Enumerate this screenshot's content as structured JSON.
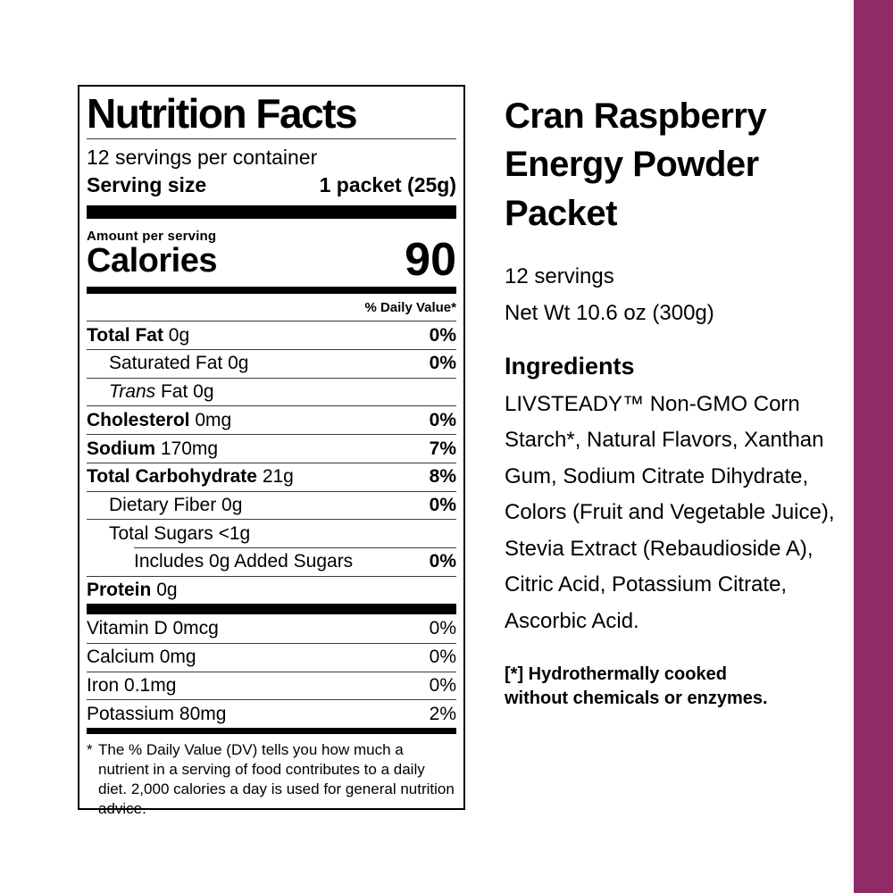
{
  "accent_color": "#912B65",
  "nutrition_label": {
    "title": "Nutrition Facts",
    "servings_per_container": "12 servings per container",
    "serving_size_label": "Serving size",
    "serving_size_value": "1 packet (25g)",
    "amount_per_serving_label": "Amount per serving",
    "calories_label": "Calories",
    "calories_value": "90",
    "daily_value_header": "% Daily Value*",
    "nutrient_rows": [
      {
        "name": "Total Fat",
        "amount": "0g",
        "dv": "0%"
      },
      {
        "name": "Saturated Fat",
        "amount": "0g",
        "dv": "0%"
      },
      {
        "name": "Trans",
        "amount": "Fat 0g",
        "dv": ""
      },
      {
        "name": "Cholesterol",
        "amount": "0mg",
        "dv": "0%"
      },
      {
        "name": "Sodium",
        "amount": "170mg",
        "dv": "7%"
      },
      {
        "name": "Total Carbohydrate",
        "amount": "21g",
        "dv": "8%"
      },
      {
        "name": "Dietary Fiber",
        "amount": "0g",
        "dv": "0%"
      },
      {
        "name": "Total Sugars",
        "amount": "<1g",
        "dv": ""
      },
      {
        "name": "Includes 0g Added Sugars",
        "amount": "",
        "dv": "0%"
      },
      {
        "name": "Protein",
        "amount": "0g",
        "dv": ""
      }
    ],
    "vitamin_rows": [
      {
        "name": "Vitamin D",
        "amount": "0mcg",
        "dv": "0%"
      },
      {
        "name": "Calcium",
        "amount": "0mg",
        "dv": "0%"
      },
      {
        "name": "Iron",
        "amount": "0.1mg",
        "dv": "0%"
      },
      {
        "name": "Potassium",
        "amount": "80mg",
        "dv": "2%"
      }
    ],
    "footnote_marker": "*",
    "footnote": "The % Daily Value (DV) tells you how much a nutrient in a serving of food contributes to a daily diet. 2,000 calories a day is used for general nutrition advice."
  },
  "product_panel": {
    "title_lines": [
      "Cran Raspberry",
      "Energy Powder",
      "Packet"
    ],
    "servings": "12 servings",
    "net_weight": "Net Wt 10.6 oz (300g)",
    "ingredients_heading": "Ingredients",
    "ingredients_text": "LIVSTEADY™ Non-GMO Corn Starch*, Natural Flavors, Xanthan Gum, Sodium Citrate Dihydrate, Colors (Fruit and Vegetable Juice), Stevia Extract (Rebaudioside A), Citric Acid, Potassium Citrate, Ascorbic Acid.",
    "footnote": "[*] Hydrothermally cooked without chemicals or enzymes."
  }
}
